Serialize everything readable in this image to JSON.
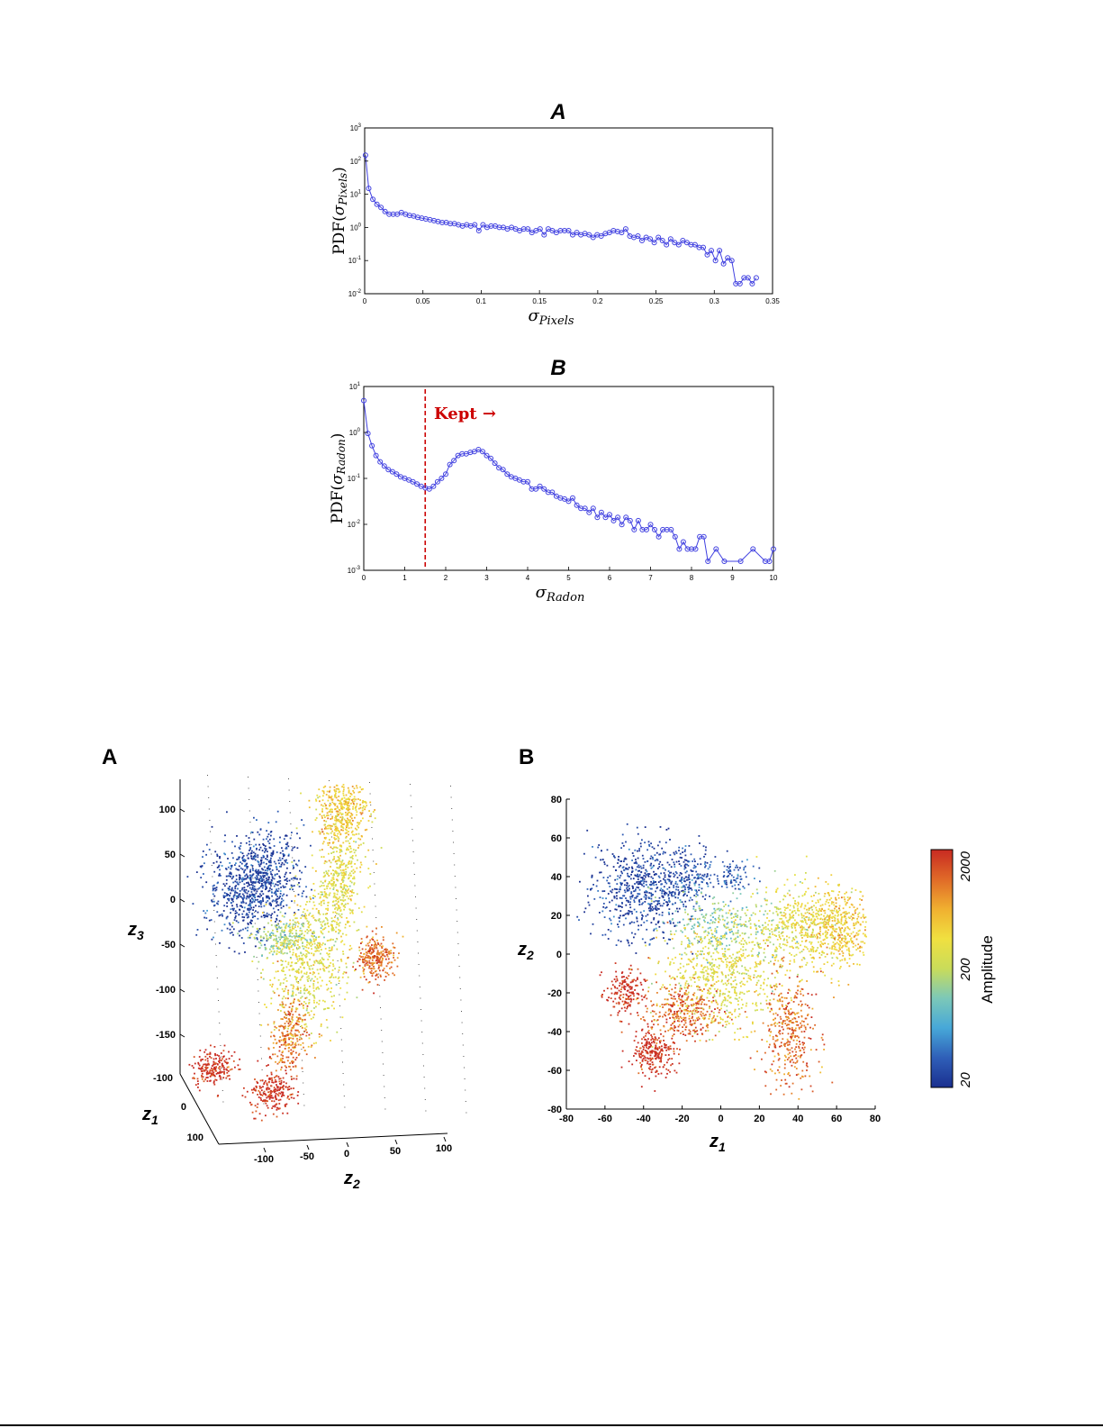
{
  "page": {
    "background": "#ffffff"
  },
  "top_figures": [
    {
      "panel_label": "A",
      "ylabel_prefix": "PDF(",
      "ylabel_sym": "σ",
      "ylabel_sub": "Pixels",
      "ylabel_suffix": ")",
      "xlabel_sym": "σ",
      "xlabel_sub": "Pixels",
      "x_ticks": [
        "0",
        "0.05",
        "0.1",
        "0.15",
        "0.2",
        "0.25",
        "0.3",
        "0.35"
      ],
      "y_ticks": [
        {
          "base": "10",
          "exp": "-2"
        },
        {
          "base": "10",
          "exp": "-1"
        },
        {
          "base": "10",
          "exp": "0"
        },
        {
          "base": "10",
          "exp": "1"
        },
        {
          "base": "10",
          "exp": "2"
        },
        {
          "base": "10",
          "exp": "3"
        }
      ],
      "colors": {
        "series": "#4040e0",
        "marker_stroke": "#3a3ad8"
      }
    },
    {
      "panel_label": "B",
      "ylabel_prefix": "PDF(",
      "ylabel_sym": "σ",
      "ylabel_sub": "Radon",
      "ylabel_suffix": ")",
      "xlabel_sym": "σ",
      "xlabel_sub": "Radon",
      "x_ticks": [
        "0",
        "1",
        "2",
        "3",
        "4",
        "5",
        "6",
        "7",
        "8",
        "9",
        "10"
      ],
      "y_ticks": [
        {
          "base": "10",
          "exp": "-3"
        },
        {
          "base": "10",
          "exp": "-2"
        },
        {
          "base": "10",
          "exp": "-1"
        },
        {
          "base": "10",
          "exp": "0"
        },
        {
          "base": "10",
          "exp": "1"
        }
      ],
      "annotation": "Kept →",
      "threshold": 1.5,
      "colors": {
        "series": "#4040e0",
        "threshold": "#cc0000",
        "annotation": "#cc0000"
      }
    }
  ],
  "bottom_figures": {
    "A": {
      "panel_label": "A",
      "z3_ticks": [
        "100",
        "50",
        "0",
        "-50",
        "-100",
        "-150"
      ],
      "z1_ticks": [
        "-100",
        "0",
        "100"
      ],
      "z2_ticks": [
        "-100",
        "-50",
        "0",
        "50",
        "100"
      ],
      "axis_label_z3": {
        "sym": "z",
        "sub": "3"
      },
      "axis_label_z1": {
        "sym": "z",
        "sub": "1"
      },
      "axis_label_z2": {
        "sym": "z",
        "sub": "2"
      }
    },
    "B": {
      "panel_label": "B",
      "x_ticks": [
        "-80",
        "-60",
        "-40",
        "-20",
        "0",
        "20",
        "40",
        "60",
        "80"
      ],
      "y_ticks": [
        "80",
        "60",
        "40",
        "20",
        "0",
        "-20",
        "-40",
        "-60",
        "-80"
      ],
      "axis_label_x": {
        "sym": "z",
        "sub": "1"
      },
      "axis_label_y": {
        "sym": "z",
        "sub": "2"
      },
      "colorbar": {
        "label": "Amplitude",
        "ticks": [
          "2000",
          "200",
          "20"
        ],
        "colors": [
          "#1a2f8f",
          "#2f5fb8",
          "#47a8d8",
          "#7cc8b8",
          "#c9dc5a",
          "#f0e040",
          "#f0b030",
          "#e06a28",
          "#c82a22"
        ]
      }
    }
  },
  "chart_data": [
    {
      "type": "line",
      "title": "A",
      "xlabel": "σ_Pixels",
      "ylabel": "PDF(σ_Pixels)",
      "xlim": [
        0,
        0.35
      ],
      "ylim": [
        0.01,
        1000
      ],
      "yscale": "log",
      "grid": false,
      "series": [
        {
          "x": [
            0.0007,
            0.0035,
            0.007,
            0.0105,
            0.014,
            0.0175,
            0.021,
            0.0245,
            0.028,
            0.0315,
            0.035,
            0.0385,
            0.042,
            0.0455,
            0.049,
            0.0525,
            0.056,
            0.0595,
            0.063,
            0.0665,
            0.07,
            0.0735,
            0.077,
            0.0805,
            0.084,
            0.0875,
            0.091,
            0.0945,
            0.098,
            0.1015,
            0.105,
            0.1085,
            0.112,
            0.1155,
            0.119,
            0.1225,
            0.126,
            0.1295,
            0.133,
            0.1365,
            0.14,
            0.1435,
            0.147,
            0.1505,
            0.154,
            0.1575,
            0.161,
            0.1645,
            0.168,
            0.1715,
            0.175,
            0.1785,
            0.182,
            0.1855,
            0.189,
            0.1925,
            0.196,
            0.1995,
            0.203,
            0.2065,
            0.21,
            0.2135,
            0.217,
            0.2205,
            0.224,
            0.2275,
            0.231,
            0.2345,
            0.238,
            0.2415,
            0.245,
            0.2485,
            0.252,
            0.2555,
            0.259,
            0.2625,
            0.266,
            0.2695,
            0.273,
            0.2765,
            0.28,
            0.2835,
            0.287,
            0.2905,
            0.294,
            0.2975,
            0.301,
            0.3045,
            0.308,
            0.3115,
            0.315,
            0.3185,
            0.322,
            0.3255,
            0.329,
            0.3325,
            0.336
          ],
          "y": [
            150,
            15,
            7,
            5,
            4,
            3,
            2.5,
            2.5,
            2.5,
            2.8,
            2.5,
            2.3,
            2.2,
            2,
            1.9,
            1.8,
            1.7,
            1.6,
            1.5,
            1.4,
            1.4,
            1.3,
            1.3,
            1.2,
            1.1,
            1.2,
            1.1,
            1.2,
            0.8,
            1.2,
            1,
            1.1,
            1.1,
            1,
            1,
            0.9,
            1,
            0.9,
            0.8,
            0.9,
            0.9,
            0.7,
            0.8,
            0.9,
            0.6,
            0.9,
            0.8,
            0.7,
            0.8,
            0.8,
            0.8,
            0.6,
            0.7,
            0.6,
            0.65,
            0.6,
            0.5,
            0.6,
            0.55,
            0.65,
            0.7,
            0.8,
            0.75,
            0.7,
            0.9,
            0.55,
            0.5,
            0.55,
            0.4,
            0.5,
            0.45,
            0.35,
            0.5,
            0.4,
            0.3,
            0.45,
            0.35,
            0.3,
            0.4,
            0.35,
            0.3,
            0.3,
            0.25,
            0.25,
            0.15,
            0.2,
            0.1,
            0.2,
            0.08,
            0.12,
            0.1,
            0.02,
            0.02,
            0.03,
            0.03,
            0.02,
            0.03
          ]
        }
      ]
    },
    {
      "type": "line",
      "title": "B",
      "xlabel": "σ_Radon",
      "ylabel": "PDF(σ_Radon)",
      "xlim": [
        0,
        10
      ],
      "ylim": [
        0.0003,
        10
      ],
      "yscale": "log",
      "grid": false,
      "annotations": [
        {
          "text": "Kept →",
          "x": 1.5
        }
      ],
      "series": [
        {
          "x": [
            0,
            0.1,
            0.2,
            0.3,
            0.4,
            0.5,
            0.6,
            0.7,
            0.8,
            0.9,
            1,
            1.1,
            1.2,
            1.3,
            1.4,
            1.5,
            1.6,
            1.7,
            1.8,
            1.9,
            2,
            2.1,
            2.2,
            2.3,
            2.4,
            2.5,
            2.6,
            2.7,
            2.8,
            2.9,
            3,
            3.1,
            3.2,
            3.3,
            3.4,
            3.5,
            3.6,
            3.7,
            3.8,
            3.9,
            4,
            4.1,
            4.2,
            4.3,
            4.4,
            4.5,
            4.6,
            4.7,
            4.8,
            4.9,
            5,
            5.1,
            5.2,
            5.3,
            5.4,
            5.5,
            5.6,
            5.7,
            5.8,
            5.9,
            6,
            6.1,
            6.2,
            6.3,
            6.4,
            6.5,
            6.6,
            6.7,
            6.8,
            6.9,
            7,
            7.1,
            7.2,
            7.3,
            7.4,
            7.5,
            7.6,
            7.7,
            7.8,
            7.9,
            8,
            8.1,
            8.2,
            8.3,
            8.4,
            8.6,
            8.8,
            9.2,
            9.5,
            9.8,
            9.9,
            10
          ],
          "y": [
            4.5,
            0.7,
            0.35,
            0.2,
            0.14,
            0.11,
            0.09,
            0.08,
            0.07,
            0.06,
            0.055,
            0.05,
            0.045,
            0.04,
            0.035,
            0.032,
            0.03,
            0.035,
            0.045,
            0.055,
            0.07,
            0.12,
            0.15,
            0.2,
            0.22,
            0.22,
            0.24,
            0.25,
            0.28,
            0.25,
            0.2,
            0.17,
            0.13,
            0.1,
            0.09,
            0.07,
            0.06,
            0.055,
            0.05,
            0.045,
            0.045,
            0.03,
            0.03,
            0.035,
            0.03,
            0.025,
            0.025,
            0.02,
            0.018,
            0.017,
            0.015,
            0.018,
            0.012,
            0.01,
            0.01,
            0.008,
            0.01,
            0.006,
            0.008,
            0.006,
            0.007,
            0.005,
            0.006,
            0.004,
            0.006,
            0.005,
            0.003,
            0.005,
            0.003,
            0.003,
            0.004,
            0.003,
            0.002,
            0.003,
            0.003,
            0.003,
            0.002,
            0.001,
            0.0015,
            0.001,
            0.001,
            0.001,
            0.002,
            0.002,
            0.0005,
            0.001,
            0.0005,
            0.0005,
            0.001,
            0.0005,
            0.0005,
            0.001
          ]
        }
      ]
    },
    {
      "type": "scatter",
      "title": "A",
      "xlabel": "z2",
      "ylabel": "z3",
      "zlabel": "z1",
      "projection": "3d",
      "xlim": [
        -150,
        150
      ],
      "ylim": [
        -150,
        150
      ],
      "zlim": [
        -150,
        150
      ],
      "color_label": "Amplitude",
      "clusters": [
        {
          "z2": -70,
          "z3": 35,
          "amplitude": 25
        },
        {
          "z2": -30,
          "z3": -30,
          "amplitude": 150
        },
        {
          "z2": 25,
          "z3": 110,
          "amplitude": 450
        },
        {
          "z2": 30,
          "z3": 30,
          "amplitude": 300
        },
        {
          "z2": 0,
          "z3": -60,
          "amplitude": 300
        },
        {
          "z2": 80,
          "z3": -55,
          "amplitude": 1100
        },
        {
          "z2": -15,
          "z3": -140,
          "amplitude": 1000
        },
        {
          "z2": -100,
          "z3": -170,
          "amplitude": 2000
        },
        {
          "z2": -30,
          "z3": -200,
          "amplitude": 2000
        }
      ]
    },
    {
      "type": "scatter",
      "title": "B",
      "xlabel": "z1",
      "ylabel": "z2",
      "xlim": [
        -80,
        80
      ],
      "ylim": [
        -80,
        80
      ],
      "color_label": "Amplitude",
      "color_scale": "log",
      "color_range": [
        20,
        2000
      ],
      "clusters": [
        {
          "x": -40,
          "y": 35,
          "amplitude": 25
        },
        {
          "x": -15,
          "y": 40,
          "amplitude": 30
        },
        {
          "x": 5,
          "y": 40,
          "amplitude": 35
        },
        {
          "x": 0,
          "y": 15,
          "amplitude": 120
        },
        {
          "x": 40,
          "y": 15,
          "amplitude": 300
        },
        {
          "x": 60,
          "y": 15,
          "amplitude": 450
        },
        {
          "x": 0,
          "y": -10,
          "amplitude": 300
        },
        {
          "x": -50,
          "y": -20,
          "amplitude": 2000
        },
        {
          "x": -35,
          "y": -50,
          "amplitude": 2000
        },
        {
          "x": -20,
          "y": -30,
          "amplitude": 1200
        },
        {
          "x": 35,
          "y": -40,
          "amplitude": 1100
        }
      ]
    }
  ]
}
